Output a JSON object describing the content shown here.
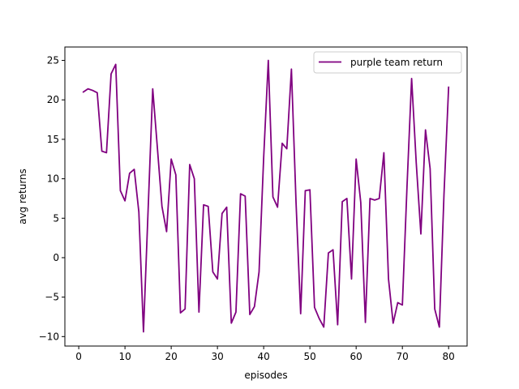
{
  "chart_data": {
    "type": "line",
    "title": "",
    "xlabel": "episodes",
    "ylabel": "avg returns",
    "xlim": [
      -3,
      84
    ],
    "ylim": [
      -11.2,
      26.7
    ],
    "xticks": [
      0,
      10,
      20,
      30,
      40,
      50,
      60,
      70,
      80
    ],
    "yticks": [
      -10,
      -5,
      0,
      5,
      10,
      15,
      20,
      25
    ],
    "grid": false,
    "legend_position": "top-right",
    "series": [
      {
        "name": "purple team return",
        "color": "#800080",
        "x": [
          1,
          2,
          3,
          4,
          5,
          6,
          7,
          8,
          9,
          10,
          11,
          12,
          13,
          14,
          15,
          16,
          17,
          18,
          19,
          20,
          21,
          22,
          23,
          24,
          25,
          26,
          27,
          28,
          29,
          30,
          31,
          32,
          33,
          34,
          35,
          36,
          37,
          38,
          39,
          40,
          41,
          42,
          43,
          44,
          45,
          46,
          47,
          48,
          49,
          50,
          51,
          52,
          53,
          54,
          55,
          56,
          57,
          58,
          59,
          60,
          61,
          62,
          63,
          64,
          65,
          66,
          67,
          68,
          69,
          70,
          71,
          72,
          73,
          74,
          75,
          76,
          77,
          78,
          79,
          80
        ],
        "y": [
          21.0,
          21.4,
          21.2,
          20.9,
          13.5,
          13.3,
          23.3,
          24.5,
          8.5,
          7.2,
          10.7,
          11.2,
          5.8,
          -9.4,
          6.0,
          21.4,
          14.0,
          6.5,
          3.3,
          12.5,
          10.5,
          -7.0,
          -6.5,
          11.8,
          10.0,
          -6.9,
          6.7,
          6.5,
          -1.8,
          -2.7,
          5.6,
          6.4,
          -8.3,
          -6.9,
          8.1,
          7.8,
          -7.2,
          -6.2,
          -1.8,
          12.7,
          25.0,
          7.7,
          6.4,
          14.5,
          13.8,
          23.9,
          7.0,
          -7.1,
          8.5,
          8.6,
          -6.3,
          -7.7,
          -8.8,
          0.6,
          1.0,
          -8.5,
          7.1,
          7.5,
          -2.7,
          12.5,
          7.0,
          -8.2,
          7.5,
          7.3,
          7.5,
          13.3,
          -2.7,
          -8.3,
          -5.7,
          -6.0,
          9.0,
          22.7,
          12.0,
          3.0,
          16.2,
          11.3,
          -6.5,
          -8.8,
          8.0,
          21.6
        ]
      }
    ]
  }
}
